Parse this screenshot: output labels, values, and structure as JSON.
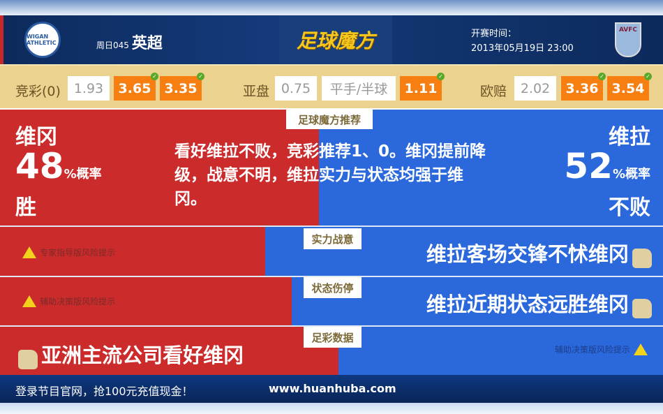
{
  "header": {
    "home_logo_text": "WIGAN ATHLETIC",
    "match_code": "周日045",
    "league": "英超",
    "brand": "足球魔方",
    "kickoff_label": "开赛时间：",
    "kickoff_time": "2013年05月19日 23:00",
    "away_logo_text": "AVFC"
  },
  "odds": {
    "jingcai": {
      "label": "竞彩(0)",
      "values": [
        "1.93",
        "3.65",
        "3.35"
      ],
      "highlighted": [
        false,
        true,
        true
      ]
    },
    "yapan": {
      "label": "亚盘",
      "values": [
        "0.75",
        "平手/半球",
        "1.11"
      ],
      "highlighted": [
        false,
        false,
        true
      ]
    },
    "oupei": {
      "label": "欧赔",
      "values": [
        "2.02",
        "3.36",
        "3.54"
      ],
      "highlighted": [
        false,
        true,
        true
      ]
    }
  },
  "recommend": {
    "tag": "足球魔方推荐",
    "home_team": "维冈",
    "home_pct": "48",
    "pct_unit": "%概率",
    "home_result": "胜",
    "away_team": "维拉",
    "away_pct": "52",
    "away_result": "不败",
    "text": "看好维拉不败，竞彩推荐1、0。维冈提前降级，战意不明，维拉实力与状态均强于维冈。"
  },
  "rows": [
    {
      "tag": "实力战意",
      "left_warning": "专家指导版风险提示",
      "right_text": "维拉客场交锋不怵维冈"
    },
    {
      "tag": "状态伤停",
      "left_warning": "辅助决策版风险提示",
      "right_text": "维拉近期状态远胜维冈"
    },
    {
      "tag": "足彩数据",
      "left_text": "亚洲主流公司看好维冈",
      "right_warning": "辅助决策版风险提示"
    }
  ],
  "footer": {
    "promo": "登录节目官网，抢100元充值现金！",
    "url": "www.huanhuba.com"
  },
  "colors": {
    "home_red": "#cc2b2b",
    "away_blue": "#2a68dc",
    "odds_orange": "#f77f12",
    "navy": "#0d2a5c"
  }
}
